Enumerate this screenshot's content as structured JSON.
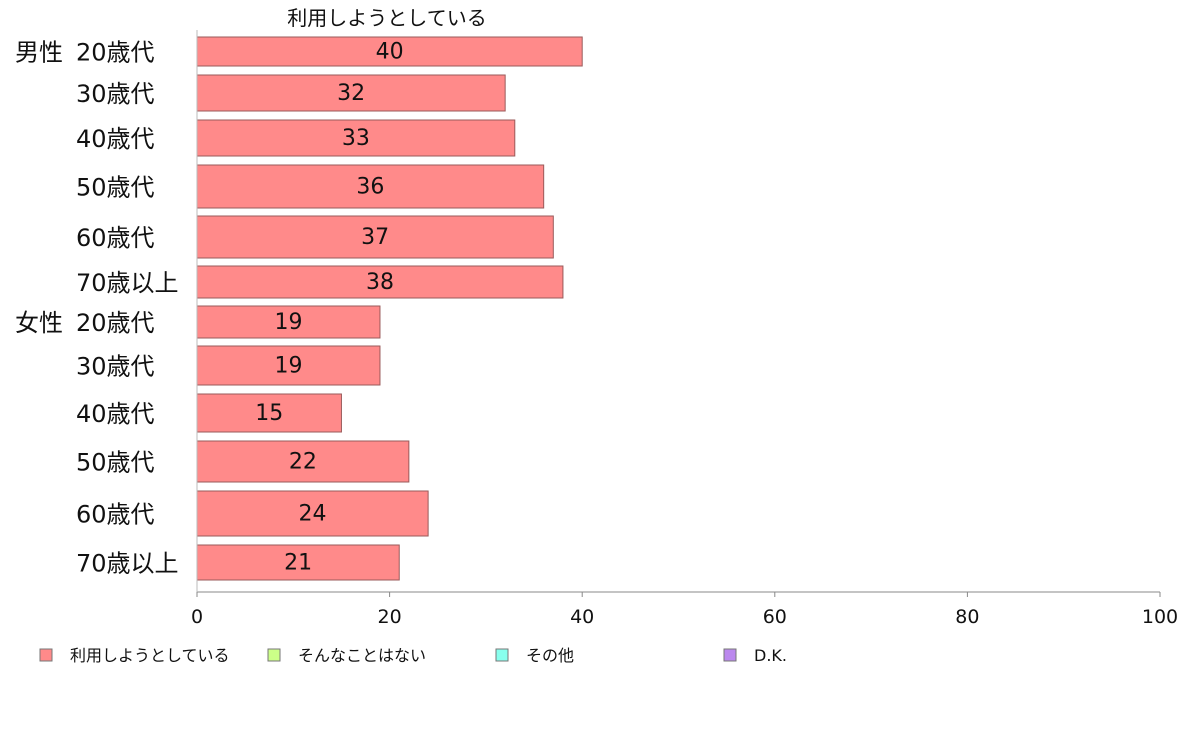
{
  "chart_data": {
    "type": "bar",
    "orientation": "horizontal",
    "title": "",
    "column_header": "利用しようとしている",
    "groups": [
      "男性",
      "女性"
    ],
    "categories": [
      "20歳代",
      "30歳代",
      "40歳代",
      "50歳代",
      "60歳代",
      "70歳以上",
      "20歳代",
      "30歳代",
      "40歳代",
      "50歳代",
      "60歳代",
      "70歳以上"
    ],
    "category_groups": [
      "男性",
      "男性",
      "男性",
      "男性",
      "男性",
      "男性",
      "女性",
      "女性",
      "女性",
      "女性",
      "女性",
      "女性"
    ],
    "series": [
      {
        "name": "利用しようとしている",
        "color": "#ff8a8a",
        "values": [
          40,
          32,
          33,
          36,
          37,
          38,
          19,
          19,
          15,
          22,
          24,
          21
        ]
      }
    ],
    "xlim": [
      0,
      100
    ],
    "xticks": [
      0,
      20,
      40,
      60,
      80,
      100
    ],
    "grid": false,
    "legend_position": "bottom",
    "legend": [
      {
        "label": "利用しようとしている",
        "color": "#ff8a8a"
      },
      {
        "label": "そんなことはない",
        "color": "#ccff88"
      },
      {
        "label": "その他",
        "color": "#88ffee"
      },
      {
        "label": "D.K.",
        "color": "#bb88ee"
      }
    ]
  }
}
